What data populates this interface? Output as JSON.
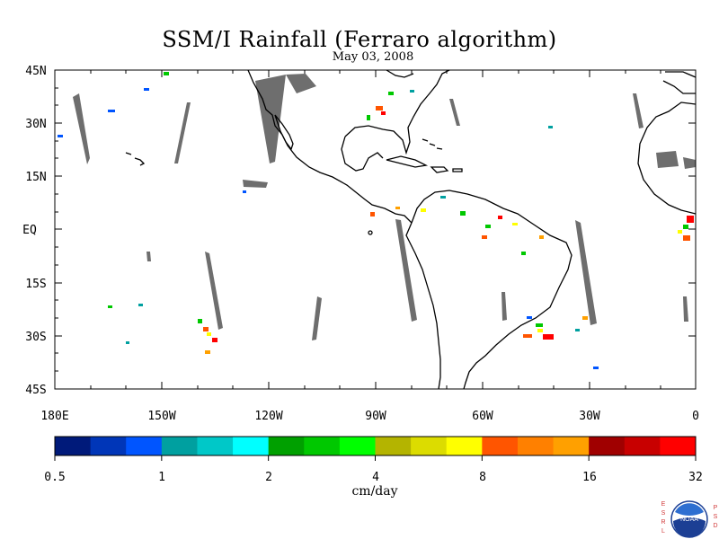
{
  "header": {
    "title": "SSM/I Rainfall (Ferraro algorithm)",
    "date": "May 03, 2008"
  },
  "map": {
    "lat_labels": [
      "45N",
      "30N",
      "15N",
      "EQ",
      "15S",
      "30S",
      "45S"
    ],
    "lon_labels": [
      "180E",
      "150W",
      "120W",
      "90W",
      "60W",
      "30W",
      "0"
    ],
    "lon_range": [
      -180,
      0
    ],
    "lat_range": [
      -45,
      45
    ]
  },
  "colorbar": {
    "units": "cm/day",
    "tick_labels": [
      "0.5",
      "1",
      "2",
      "4",
      "8",
      "16",
      "32"
    ],
    "colors": [
      "#001a7a",
      "#0036b8",
      "#0055ff",
      "#00a0a0",
      "#00c8c8",
      "#00ffff",
      "#00a000",
      "#00c800",
      "#00ff00",
      "#b4b400",
      "#dcdc00",
      "#ffff00",
      "#ff5500",
      "#ff8000",
      "#ffa000",
      "#a00000",
      "#c80000",
      "#ff0000"
    ]
  },
  "logo": {
    "name": "noaa-logo",
    "left_text": [
      "E",
      "S",
      "R",
      "L"
    ],
    "right_text": [
      "P",
      "S",
      "D"
    ],
    "center_text": "NOAA"
  }
}
